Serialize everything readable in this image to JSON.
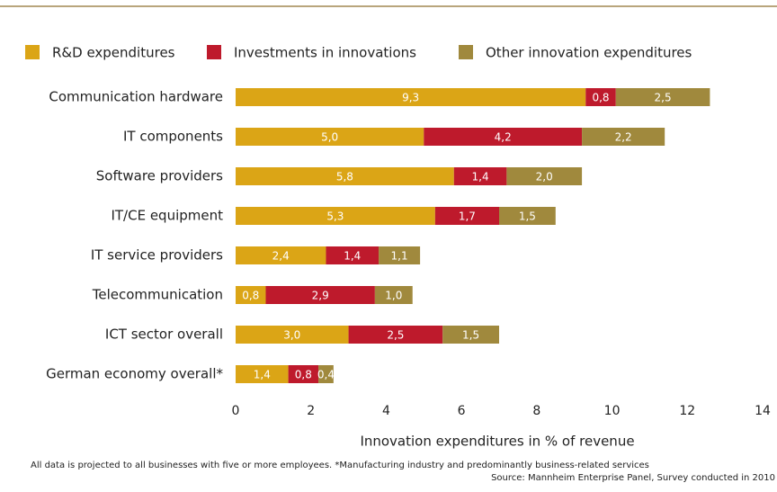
{
  "chart_data": {
    "type": "stacked_barh",
    "categories": [
      "Communication hardware",
      "IT components",
      "Software providers",
      "IT/CE equipment",
      "IT service providers",
      "Telecommunication",
      "ICT sector overall",
      "German economy overall*"
    ],
    "series": [
      {
        "name": "R&D expenditures",
        "color": "#dba516",
        "values": [
          9.3,
          5.0,
          5.8,
          5.3,
          2.4,
          0.8,
          3.0,
          1.4
        ],
        "value_labels": [
          "9,3",
          "5,0",
          "5,8",
          "5,3",
          "2,4",
          "0,8",
          "3,0",
          "1,4"
        ]
      },
      {
        "name": "Investments in innovations",
        "color": "#be1a2c",
        "values": [
          0.8,
          4.2,
          1.4,
          1.7,
          1.4,
          2.9,
          2.5,
          0.8
        ],
        "value_labels": [
          "0,8",
          "4,2",
          "1,4",
          "1,7",
          "1,4",
          "2,9",
          "2,5",
          "0,8"
        ]
      },
      {
        "name": "Other innovation expenditures",
        "color": "#a0893d",
        "values": [
          2.5,
          2.2,
          2.0,
          1.5,
          1.1,
          1.0,
          1.5,
          0.4
        ],
        "value_labels": [
          "2,5",
          "2,2",
          "2,0",
          "1,5",
          "1,1",
          "1,0",
          "1,5",
          "0,4"
        ]
      }
    ],
    "xlim": [
      0,
      14
    ],
    "xticks": [
      0,
      2,
      4,
      6,
      8,
      10,
      12,
      14
    ],
    "xlabel": "Innovation expenditures in % of revenue",
    "notes": [
      "All data is projected to all businesses with five or more employees. *Manufacturing industry and predominantly business-related services",
      "Source: Mannheim Enterprise Panel, Survey conducted in 2010"
    ]
  }
}
